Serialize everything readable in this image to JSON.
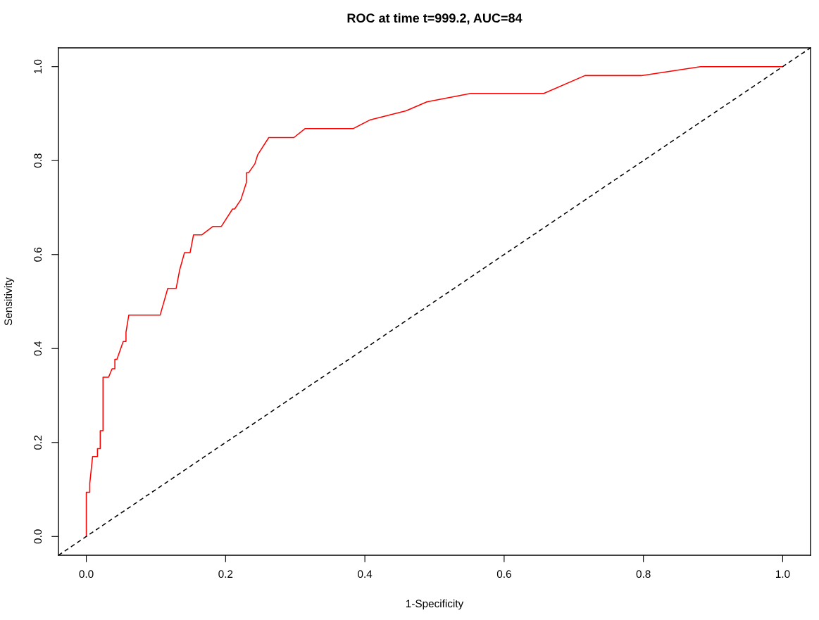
{
  "chart_data": {
    "type": "line",
    "title": "ROC at time t=999.2, AUC=84",
    "xlabel": "1-Specificity",
    "ylabel": "Sensitivity",
    "xlim": [
      -0.04,
      1.04
    ],
    "ylim": [
      -0.04,
      1.04
    ],
    "xticks": [
      {
        "value": 0,
        "label": "0.0"
      },
      0.2,
      0.4,
      0.6,
      0.8,
      {
        "value": 1,
        "label": "1.0"
      }
    ],
    "yticks": [
      {
        "value": 0,
        "label": "0.0"
      },
      0.2,
      0.4,
      0.6,
      0.8,
      {
        "value": 1,
        "label": "1.0"
      }
    ],
    "grid": false,
    "legend": false,
    "series": [
      {
        "color": "#ff0000",
        "line_style": "solid",
        "x": [
          0,
          0,
          0.005,
          0.005,
          0.009,
          0.016,
          0.016,
          0.02,
          0.02,
          0.024,
          0.024,
          0.032,
          0.037,
          0.041,
          0.041,
          0.044,
          0.053,
          0.057,
          0.057,
          0.061,
          0.106,
          0.117,
          0.129,
          0.134,
          0.141,
          0.149,
          0.154,
          0.166,
          0.182,
          0.194,
          0.21,
          0.213,
          0.222,
          0.23,
          0.23,
          0.233,
          0.242,
          0.246,
          0.262,
          0.298,
          0.314,
          0.383,
          0.408,
          0.459,
          0.489,
          0.552,
          0.657,
          0.716,
          0.797,
          0.882,
          1.0
        ],
        "values": [
          0,
          0.094,
          0.094,
          0.113,
          0.17,
          0.17,
          0.187,
          0.187,
          0.225,
          0.225,
          0.339,
          0.339,
          0.357,
          0.357,
          0.377,
          0.377,
          0.415,
          0.415,
          0.435,
          0.471,
          0.471,
          0.528,
          0.528,
          0.567,
          0.604,
          0.604,
          0.642,
          0.642,
          0.66,
          0.66,
          0.697,
          0.697,
          0.717,
          0.754,
          0.774,
          0.774,
          0.793,
          0.812,
          0.849,
          0.849,
          0.868,
          0.868,
          0.887,
          0.906,
          0.925,
          0.943,
          0.943,
          0.981,
          0.981,
          1.0,
          1.0
        ]
      },
      {
        "color": "#000000",
        "line_style": "dashed",
        "x": [
          -0.04,
          1.04
        ],
        "values": [
          -0.04,
          1.04
        ]
      }
    ]
  }
}
